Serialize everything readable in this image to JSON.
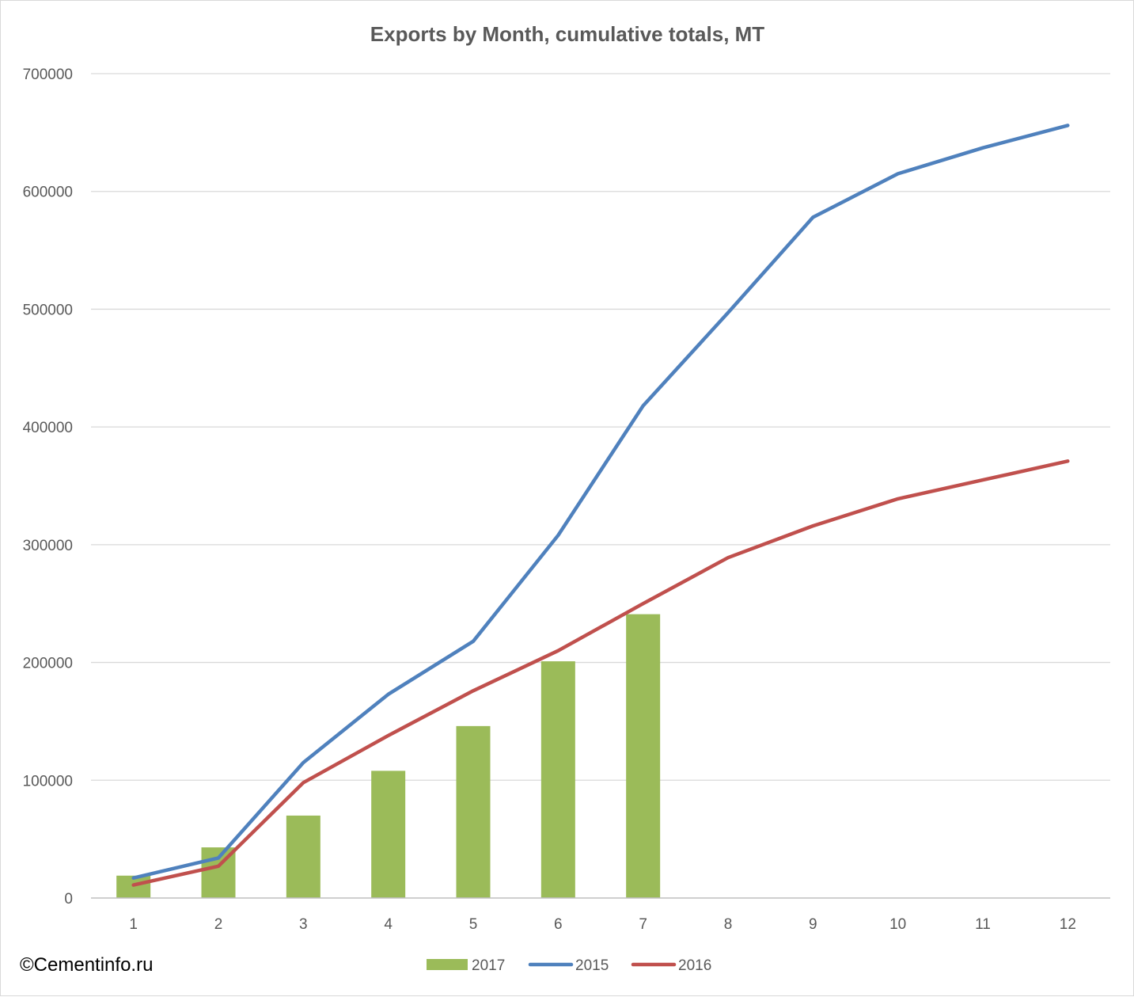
{
  "watermark": "©Cementinfo.ru",
  "colors": {
    "series_2017": "#9BBB59",
    "series_2015": "#4F81BD",
    "series_2016": "#C0504D",
    "grid": "#d9d9d9",
    "axis": "#bfbfbf"
  },
  "chart_data": {
    "type": "bar",
    "title": "Exports by Month, cumulative totals, MT",
    "xlabel": "",
    "ylabel": "",
    "categories": [
      "1",
      "2",
      "3",
      "4",
      "5",
      "6",
      "7",
      "8",
      "9",
      "10",
      "11",
      "12"
    ],
    "ylim": [
      0,
      700000
    ],
    "yticks": [
      "0",
      "100000",
      "200000",
      "300000",
      "400000",
      "500000",
      "600000",
      "700000"
    ],
    "grid": true,
    "legend_position": "bottom",
    "series": [
      {
        "name": "2017",
        "type": "bar",
        "values": [
          19000,
          43000,
          70000,
          108000,
          146000,
          201000,
          241000,
          null,
          null,
          null,
          null,
          null
        ]
      },
      {
        "name": "2015",
        "type": "line",
        "values": [
          17000,
          34000,
          115000,
          173000,
          218000,
          308000,
          418000,
          497000,
          578000,
          615000,
          637000,
          656000
        ]
      },
      {
        "name": "2016",
        "type": "line",
        "values": [
          11000,
          27000,
          98000,
          138000,
          176000,
          210000,
          250000,
          289000,
          316000,
          339000,
          355000,
          371000
        ]
      }
    ]
  }
}
